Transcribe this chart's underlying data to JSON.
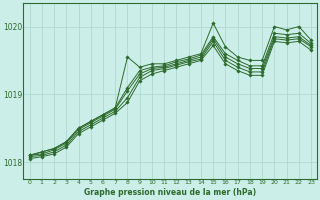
{
  "title": "Graphe pression niveau de la mer (hPa)",
  "bg_color": "#cceee8",
  "line_color": "#2d6a2d",
  "grid_color": "#aad4cc",
  "xlim": [
    -0.5,
    23.5
  ],
  "ylim": [
    1017.75,
    1020.35
  ],
  "yticks": [
    1018,
    1019,
    1020
  ],
  "xticks": [
    0,
    1,
    2,
    3,
    4,
    5,
    6,
    7,
    8,
    9,
    10,
    11,
    12,
    13,
    14,
    15,
    16,
    17,
    18,
    19,
    20,
    21,
    22,
    23
  ],
  "series": [
    [
      1018.1,
      1018.15,
      1018.2,
      1018.3,
      1018.5,
      1018.6,
      1018.7,
      1018.8,
      1019.55,
      1019.4,
      1019.45,
      1019.45,
      1019.5,
      1019.55,
      1019.6,
      1020.05,
      1019.7,
      1019.55,
      1019.5,
      1019.5,
      1020.0,
      1019.95,
      1020.0,
      1019.8
    ],
    [
      1018.1,
      1018.15,
      1018.2,
      1018.3,
      1018.5,
      1018.6,
      1018.7,
      1018.8,
      1019.1,
      1019.35,
      1019.4,
      1019.42,
      1019.48,
      1019.52,
      1019.58,
      1019.85,
      1019.6,
      1019.5,
      1019.42,
      1019.42,
      1019.9,
      1019.88,
      1019.9,
      1019.75
    ],
    [
      1018.1,
      1018.12,
      1018.18,
      1018.28,
      1018.48,
      1018.58,
      1018.68,
      1018.78,
      1019.05,
      1019.3,
      1019.38,
      1019.4,
      1019.45,
      1019.5,
      1019.55,
      1019.82,
      1019.55,
      1019.45,
      1019.38,
      1019.38,
      1019.85,
      1019.83,
      1019.85,
      1019.72
    ],
    [
      1018.08,
      1018.1,
      1018.15,
      1018.25,
      1018.45,
      1018.55,
      1018.65,
      1018.75,
      1018.95,
      1019.25,
      1019.35,
      1019.38,
      1019.43,
      1019.48,
      1019.52,
      1019.78,
      1019.5,
      1019.4,
      1019.33,
      1019.33,
      1019.82,
      1019.8,
      1019.82,
      1019.7
    ],
    [
      1018.05,
      1018.08,
      1018.12,
      1018.22,
      1018.42,
      1018.52,
      1018.62,
      1018.72,
      1018.88,
      1019.2,
      1019.3,
      1019.35,
      1019.4,
      1019.45,
      1019.5,
      1019.72,
      1019.45,
      1019.35,
      1019.28,
      1019.28,
      1019.78,
      1019.76,
      1019.78,
      1019.65
    ]
  ]
}
